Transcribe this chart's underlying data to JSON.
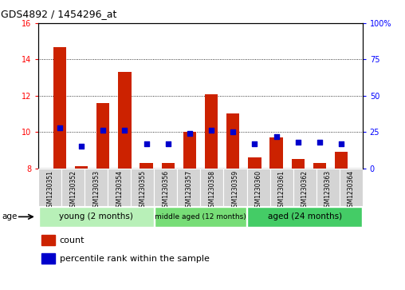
{
  "title": "GDS4892 / 1454296_at",
  "samples": [
    "GSM1230351",
    "GSM1230352",
    "GSM1230353",
    "GSM1230354",
    "GSM1230355",
    "GSM1230356",
    "GSM1230357",
    "GSM1230358",
    "GSM1230359",
    "GSM1230360",
    "GSM1230361",
    "GSM1230362",
    "GSM1230363",
    "GSM1230364"
  ],
  "count": [
    14.7,
    8.1,
    11.6,
    13.3,
    8.3,
    8.3,
    10.0,
    12.1,
    11.0,
    8.6,
    9.7,
    8.5,
    8.3,
    8.9
  ],
  "percentile": [
    28,
    15,
    26,
    26,
    17,
    17,
    24,
    26,
    25,
    17,
    22,
    18,
    18,
    17
  ],
  "ylim_left": [
    8,
    16
  ],
  "ylim_right": [
    0,
    100
  ],
  "yticks_left": [
    8,
    10,
    12,
    14,
    16
  ],
  "yticks_right": [
    0,
    25,
    50,
    75,
    100
  ],
  "bar_color": "#cc2200",
  "dot_color": "#0000cc",
  "groups": [
    {
      "label": "young (2 months)",
      "start": 0,
      "end": 5,
      "color": "#b8f0b8"
    },
    {
      "label": "middle aged (12 months)",
      "start": 5,
      "end": 9,
      "color": "#77dd77"
    },
    {
      "label": "aged (24 months)",
      "start": 9,
      "end": 14,
      "color": "#44cc66"
    }
  ],
  "bar_bottom": 8,
  "background_color": "#ffffff",
  "grid_color": "#000000",
  "cell_color": "#d4d4d4"
}
